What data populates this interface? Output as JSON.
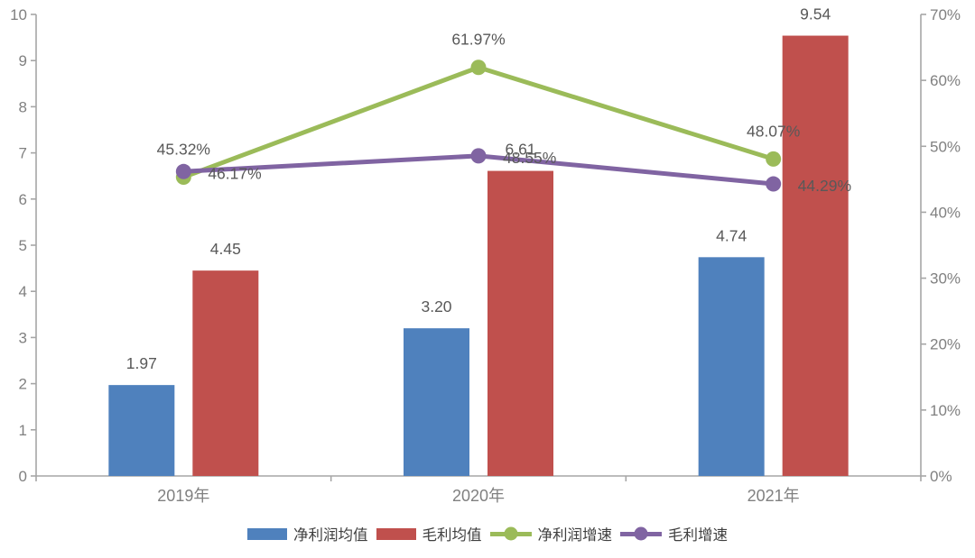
{
  "chart_data": {
    "type": "combo-bar-line",
    "title": "",
    "categories": [
      "2019年",
      "2020年",
      "2021年"
    ],
    "series": [
      {
        "key": "net-profit-average",
        "name": "净利润均值",
        "kind": "bar",
        "axis": "left",
        "color": "#4F81BD",
        "values": [
          1.97,
          3.2,
          4.74
        ],
        "labels": [
          "1.97",
          "3.20",
          "4.74"
        ]
      },
      {
        "key": "gross-profit-average",
        "name": "毛利均值",
        "kind": "bar",
        "axis": "left",
        "color": "#C0504D",
        "values": [
          4.45,
          6.61,
          9.54
        ],
        "labels": [
          "4.45",
          "6.61",
          "9.54"
        ]
      },
      {
        "key": "net-profit-growth",
        "name": "净利润增速",
        "kind": "line",
        "axis": "right",
        "color": "#9BBB59",
        "values": [
          45.32,
          61.97,
          48.07
        ],
        "labels": [
          "45.32%",
          "61.97%",
          "48.07%"
        ]
      },
      {
        "key": "gross-profit-growth",
        "name": "毛利增速",
        "kind": "line",
        "axis": "right",
        "color": "#8064A2",
        "values": [
          46.17,
          48.55,
          44.29
        ],
        "labels": [
          "46.17%",
          "48.55%",
          "44.29%"
        ]
      }
    ],
    "left_axis": {
      "min": 0,
      "max": 10,
      "step": 1,
      "tick_labels": [
        "0",
        "1",
        "2",
        "3",
        "4",
        "5",
        "6",
        "7",
        "8",
        "9",
        "10"
      ]
    },
    "right_axis": {
      "min": 0,
      "max": 70,
      "step": 10,
      "tick_labels": [
        "0%",
        "10%",
        "20%",
        "30%",
        "40%",
        "50%",
        "60%",
        "70%"
      ]
    },
    "grid": false,
    "legend_position": "bottom"
  },
  "colors": {
    "background": "#FFFFFF",
    "axis_line": "#A6A6A6",
    "tick_label": "#808080",
    "data_label": "#595959",
    "legend_text": "#3F3F3F"
  }
}
